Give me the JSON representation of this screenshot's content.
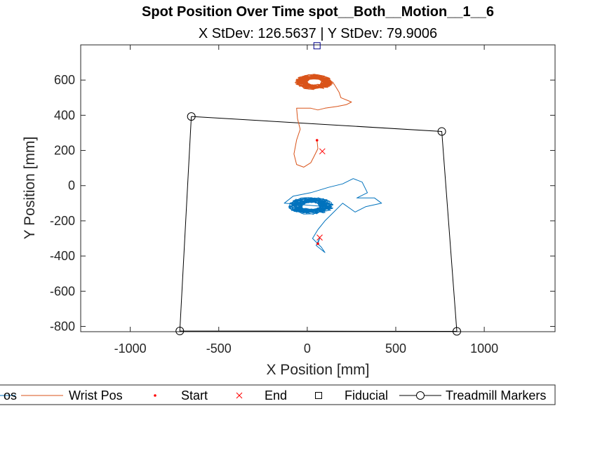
{
  "chart_data": {
    "type": "line",
    "title": "Spot Position Over Time spot__Both__Motion__1__6",
    "subtitle": "X StDev: 126.5637  |  Y StDev: 79.9006",
    "xlabel": "X Position [mm]",
    "ylabel": "Y Position [mm]",
    "xlim": [
      -1280,
      1400
    ],
    "ylim": [
      -830,
      800
    ],
    "xticks": [
      -1000,
      -500,
      0,
      500,
      1000
    ],
    "xtick_labels": [
      "-1000",
      "-500",
      "0",
      "500",
      "1000"
    ],
    "yticks": [
      -800,
      -600,
      -400,
      -200,
      0,
      200,
      400,
      600
    ],
    "ytick_labels": [
      "-800",
      "-600",
      "-400",
      "-200",
      "0",
      "200",
      "400",
      "600"
    ],
    "grid": false,
    "legend_position": "bottom",
    "legend": [
      {
        "label": "os",
        "symbol": "line",
        "color": "#0072BD"
      },
      {
        "label": "Wrist Pos",
        "symbol": "line",
        "color": "#D95319"
      },
      {
        "label": "Start",
        "symbol": "dot",
        "color": "#FF0000"
      },
      {
        "label": "End",
        "symbol": "x",
        "color": "#FF0000"
      },
      {
        "label": "Fiducial",
        "symbol": "square",
        "color": "#000000"
      },
      {
        "label": "Treadmill Markers",
        "symbol": "circle-line",
        "color": "#000000"
      }
    ],
    "colors": {
      "spot": "#0072BD",
      "wrist": "#D95319",
      "start_end": "#FF0000",
      "fiducial": "#00008B",
      "treadmill": "#000000"
    },
    "series": [
      {
        "key": "spot",
        "trace": {
          "cluster": {
            "cx": 20,
            "cy": -115,
            "rx": 130,
            "ry": 50,
            "turns": 26
          },
          "path": [
            [
              -130,
              -100
            ],
            [
              -80,
              -60
            ],
            [
              20,
              -40
            ],
            [
              120,
              -10
            ],
            [
              200,
              10
            ],
            [
              260,
              40
            ],
            [
              310,
              20
            ],
            [
              340,
              -40
            ],
            [
              280,
              -70
            ],
            [
              380,
              -70
            ],
            [
              420,
              -100
            ],
            [
              330,
              -120
            ],
            [
              270,
              -150
            ],
            [
              200,
              -100
            ],
            [
              150,
              -150
            ],
            [
              100,
              -200
            ],
            [
              60,
              -250
            ],
            [
              30,
              -300
            ],
            [
              80,
              -350
            ],
            [
              100,
              -380
            ],
            [
              50,
              -340
            ],
            [
              70,
              -300
            ],
            [
              60,
              -330
            ]
          ]
        },
        "start": [
          60,
          -330
        ],
        "end": [
          70,
          -295
        ]
      },
      {
        "key": "wrist",
        "trace": {
          "cluster": {
            "cx": 40,
            "cy": 590,
            "rx": 110,
            "ry": 45,
            "turns": 28
          },
          "path": [
            [
              150,
              580
            ],
            [
              180,
              530
            ],
            [
              190,
              500
            ],
            [
              250,
              475
            ],
            [
              220,
              460
            ],
            [
              170,
              450
            ],
            [
              100,
              440
            ],
            [
              60,
              430
            ],
            [
              20,
              440
            ],
            [
              -60,
              440
            ],
            [
              -55,
              380
            ],
            [
              -40,
              320
            ],
            [
              -60,
              260
            ],
            [
              -75,
              180
            ],
            [
              -60,
              120
            ],
            [
              -20,
              105
            ],
            [
              20,
              130
            ],
            [
              40,
              170
            ],
            [
              60,
              210
            ],
            [
              55,
              260
            ]
          ]
        },
        "start": [
          55,
          258
        ],
        "end": [
          85,
          195
        ]
      }
    ],
    "fiducial": [
      55,
      795
    ],
    "treadmill_markers": [
      [
        -655,
        393
      ],
      [
        760,
        308
      ],
      [
        845,
        -828
      ],
      [
        -720,
        -826
      ]
    ]
  }
}
